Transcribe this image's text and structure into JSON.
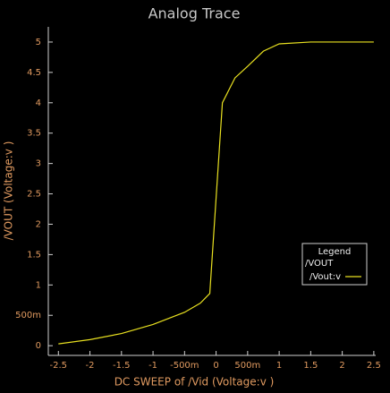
{
  "chart_data": {
    "type": "line",
    "title": "Analog Trace",
    "x_label": "DC SWEEP of /Vid (Voltage:v )",
    "y_label": "/VOUT (Voltage:v )",
    "x": [
      -2.5,
      -2,
      -1.5,
      -1,
      -0.5,
      -0.25,
      -0.1,
      0.1,
      0.3,
      0.5,
      0.75,
      1,
      1.5,
      2.5
    ],
    "series": [
      {
        "name": "/Vout:v",
        "color": "#e8e020",
        "values": [
          0.03,
          0.1,
          0.2,
          0.35,
          0.55,
          0.7,
          0.86,
          4.0,
          4.41,
          4.6,
          4.85,
          4.97,
          5.0,
          5.0
        ]
      }
    ],
    "xlim": [
      -2.66,
      2.53
    ],
    "ylim": [
      -0.16,
      5.25
    ],
    "xticks": [
      -2.5,
      -2,
      -1.5,
      -1,
      {
        "value": -0.5,
        "label": "-500m"
      },
      0,
      {
        "value": 0.5,
        "label": "500m"
      },
      1,
      1.5,
      2,
      2.5
    ],
    "yticks": [
      0,
      {
        "value": 0.5,
        "label": "500m"
      },
      1,
      1.5,
      2,
      2.5,
      3,
      3.5,
      4,
      4.5,
      5
    ],
    "legend_title": "Legend",
    "legend_group": "/VOUT",
    "legend_position": "lower right"
  }
}
